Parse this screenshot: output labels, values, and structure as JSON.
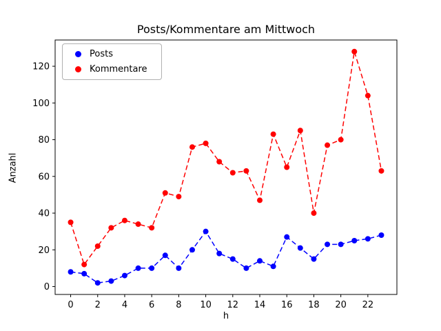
{
  "chart_data": {
    "type": "line",
    "title": "Posts/Kommentare am Mittwoch",
    "xlabel": "h",
    "ylabel": "Anzahl",
    "x": [
      0,
      1,
      2,
      3,
      4,
      5,
      6,
      7,
      8,
      9,
      10,
      11,
      12,
      13,
      14,
      15,
      16,
      17,
      18,
      19,
      20,
      21,
      22,
      23
    ],
    "series": [
      {
        "name": "Posts",
        "color": "#0000ff",
        "marker": "o",
        "linestyle": "dashed",
        "values": [
          8,
          7,
          2,
          3,
          6,
          10,
          10,
          17,
          10,
          20,
          30,
          18,
          15,
          10,
          14,
          11,
          27,
          21,
          15,
          23,
          23,
          25,
          26,
          28
        ]
      },
      {
        "name": "Kommentare",
        "color": "#ff0000",
        "marker": "o",
        "linestyle": "dashed",
        "values": [
          35,
          12,
          22,
          32,
          36,
          34,
          32,
          51,
          49,
          76,
          78,
          68,
          62,
          63,
          47,
          83,
          65,
          85,
          40,
          77,
          80,
          128,
          104,
          63
        ]
      }
    ],
    "xlim": [
      -1.15,
      24.15
    ],
    "ylim": [
      -4.3,
      134.3
    ],
    "xticks": [
      0,
      2,
      4,
      6,
      8,
      10,
      12,
      14,
      16,
      18,
      20,
      22
    ],
    "yticks": [
      0,
      20,
      40,
      60,
      80,
      100,
      120
    ],
    "legend_position": "upper left",
    "grid": false,
    "background": "#ffffff",
    "frame_color": "#000000"
  }
}
